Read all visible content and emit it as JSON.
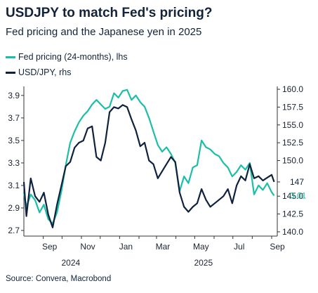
{
  "title": "USDJPY to match Fed's pricing?",
  "subtitle": "Fed pricing and the Japanese yen in 2025",
  "source": "Source: Convera, Macrobond",
  "colors": {
    "fed": "#1bbfa6",
    "usdjpy": "#0e2240",
    "axis": "#333333",
    "label_fed": "#1bbfa6",
    "label_usdjpy": "#0e2240"
  },
  "chart_data": {
    "type": "line",
    "legend_position": "top-left",
    "grid": false,
    "x_ticks": [
      "Sep",
      "Nov",
      "Jan",
      "Mar",
      "May",
      "Jul",
      "Sep"
    ],
    "x_years": [
      "2024",
      "2025"
    ],
    "x_range": [
      "2024-08-01",
      "2025-09-10"
    ],
    "y_left": {
      "label": "lhs",
      "ticks": [
        "3.9",
        "3.7",
        "3.5",
        "3.3",
        "3.1",
        "2.9",
        "2.7"
      ],
      "range": [
        2.65,
        3.98
      ]
    },
    "y_right": {
      "label": "rhs",
      "ticks": [
        "160.0",
        "157.5",
        "155.0",
        "152.5",
        "150.0",
        "147",
        "145.0",
        "142.5",
        "140.0"
      ],
      "range": [
        139.4,
        160.4
      ]
    },
    "last_value_labels": {
      "fed": "3.01",
      "usdjpy": "147"
    },
    "series": [
      {
        "name": "Fed pricing (24-months), lhs",
        "axis": "left",
        "points": [
          [
            "2024-08-01",
            3.04
          ],
          [
            "2024-08-05",
            2.91
          ],
          [
            "2024-08-12",
            3.02
          ],
          [
            "2024-08-19",
            2.97
          ],
          [
            "2024-08-26",
            2.86
          ],
          [
            "2024-09-02",
            2.93
          ],
          [
            "2024-09-09",
            2.8
          ],
          [
            "2024-09-16",
            2.76
          ],
          [
            "2024-09-23",
            2.86
          ],
          [
            "2024-09-30",
            3.05
          ],
          [
            "2024-10-07",
            3.28
          ],
          [
            "2024-10-14",
            3.48
          ],
          [
            "2024-10-21",
            3.58
          ],
          [
            "2024-10-28",
            3.66
          ],
          [
            "2024-11-04",
            3.72
          ],
          [
            "2024-11-11",
            3.76
          ],
          [
            "2024-11-18",
            3.82
          ],
          [
            "2024-11-25",
            3.86
          ],
          [
            "2024-12-02",
            3.82
          ],
          [
            "2024-12-09",
            3.78
          ],
          [
            "2024-12-16",
            3.8
          ],
          [
            "2024-12-23",
            3.92
          ],
          [
            "2024-12-30",
            3.88
          ],
          [
            "2025-01-06",
            3.94
          ],
          [
            "2025-01-13",
            3.95
          ],
          [
            "2025-01-20",
            3.86
          ],
          [
            "2025-01-27",
            3.9
          ],
          [
            "2025-02-03",
            3.84
          ],
          [
            "2025-02-10",
            3.8
          ],
          [
            "2025-02-17",
            3.7
          ],
          [
            "2025-02-24",
            3.58
          ],
          [
            "2025-03-03",
            3.46
          ],
          [
            "2025-03-10",
            3.4
          ],
          [
            "2025-03-17",
            3.44
          ],
          [
            "2025-03-24",
            3.38
          ],
          [
            "2025-03-31",
            3.3
          ],
          [
            "2025-04-07",
            3.05
          ],
          [
            "2025-04-14",
            3.18
          ],
          [
            "2025-04-21",
            3.12
          ],
          [
            "2025-04-28",
            3.26
          ],
          [
            "2025-05-05",
            3.28
          ],
          [
            "2025-05-12",
            3.5
          ],
          [
            "2025-05-19",
            3.44
          ],
          [
            "2025-05-26",
            3.42
          ],
          [
            "2025-06-02",
            3.38
          ],
          [
            "2025-06-09",
            3.36
          ],
          [
            "2025-06-16",
            3.3
          ],
          [
            "2025-06-23",
            3.26
          ],
          [
            "2025-06-30",
            3.18
          ],
          [
            "2025-07-07",
            3.22
          ],
          [
            "2025-07-14",
            3.28
          ],
          [
            "2025-07-21",
            3.24
          ],
          [
            "2025-07-28",
            3.3
          ],
          [
            "2025-08-04",
            3.02
          ],
          [
            "2025-08-11",
            3.1
          ],
          [
            "2025-08-18",
            3.06
          ],
          [
            "2025-08-25",
            3.12
          ],
          [
            "2025-09-01",
            3.04
          ],
          [
            "2025-09-05",
            3.01
          ]
        ]
      },
      {
        "name": "USD/JPY, rhs",
        "axis": "right",
        "points": [
          [
            "2024-08-01",
            147.0
          ],
          [
            "2024-08-05",
            142.2
          ],
          [
            "2024-08-12",
            147.5
          ],
          [
            "2024-08-19",
            145.0
          ],
          [
            "2024-08-26",
            144.2
          ],
          [
            "2024-09-02",
            145.5
          ],
          [
            "2024-09-09",
            142.4
          ],
          [
            "2024-09-16",
            140.6
          ],
          [
            "2024-09-23",
            143.8
          ],
          [
            "2024-09-30",
            146.5
          ],
          [
            "2024-10-07",
            149.2
          ],
          [
            "2024-10-14",
            149.8
          ],
          [
            "2024-10-21",
            151.8
          ],
          [
            "2024-10-28",
            152.5
          ],
          [
            "2024-11-04",
            152.8
          ],
          [
            "2024-11-11",
            154.5
          ],
          [
            "2024-11-18",
            154.8
          ],
          [
            "2024-11-25",
            150.5
          ],
          [
            "2024-12-02",
            150.0
          ],
          [
            "2024-12-09",
            152.5
          ],
          [
            "2024-12-16",
            156.8
          ],
          [
            "2024-12-23",
            157.5
          ],
          [
            "2024-12-30",
            157.3
          ],
          [
            "2025-01-06",
            157.8
          ],
          [
            "2025-01-13",
            157.5
          ],
          [
            "2025-01-20",
            155.8
          ],
          [
            "2025-01-27",
            154.2
          ],
          [
            "2025-02-03",
            152.0
          ],
          [
            "2025-02-10",
            152.5
          ],
          [
            "2025-02-17",
            150.0
          ],
          [
            "2025-02-24",
            149.5
          ],
          [
            "2025-03-03",
            147.5
          ],
          [
            "2025-03-10",
            148.5
          ],
          [
            "2025-03-17",
            149.5
          ],
          [
            "2025-03-24",
            150.5
          ],
          [
            "2025-03-31",
            149.8
          ],
          [
            "2025-04-07",
            145.5
          ],
          [
            "2025-04-14",
            143.5
          ],
          [
            "2025-04-21",
            142.8
          ],
          [
            "2025-04-28",
            143.5
          ],
          [
            "2025-05-05",
            144.0
          ],
          [
            "2025-05-12",
            146.0
          ],
          [
            "2025-05-19",
            144.5
          ],
          [
            "2025-05-26",
            143.5
          ],
          [
            "2025-06-02",
            144.0
          ],
          [
            "2025-06-09",
            144.5
          ],
          [
            "2025-06-16",
            145.0
          ],
          [
            "2025-06-23",
            146.0
          ],
          [
            "2025-06-30",
            144.0
          ],
          [
            "2025-07-07",
            146.5
          ],
          [
            "2025-07-14",
            147.8
          ],
          [
            "2025-07-21",
            147.2
          ],
          [
            "2025-07-28",
            149.5
          ],
          [
            "2025-08-04",
            147.5
          ],
          [
            "2025-08-11",
            147.8
          ],
          [
            "2025-08-18",
            147.2
          ],
          [
            "2025-08-25",
            147.6
          ],
          [
            "2025-09-01",
            148.0
          ],
          [
            "2025-09-05",
            147.0
          ]
        ]
      }
    ]
  }
}
